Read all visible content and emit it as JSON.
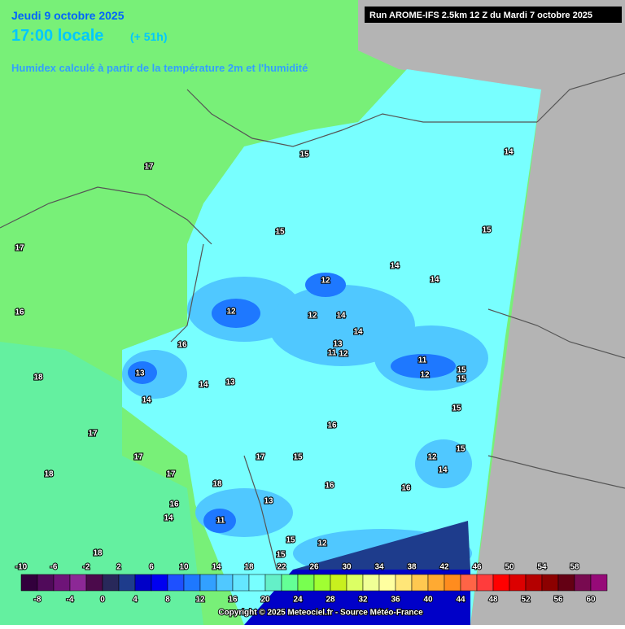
{
  "header": {
    "date": "Jeudi 9 octobre 2025",
    "time": "17:00 locale",
    "lead": "(+ 51h)",
    "parameter": "Humidex calculé à partir de la température 2m et l'humidité",
    "run": "Run AROME-IFS 2.5km 12 Z du Mardi 7 octobre 2025"
  },
  "contour_labels": [
    "17",
    "17",
    "16",
    "18",
    "16",
    "15",
    "15",
    "15",
    "14",
    "14",
    "14",
    "12",
    "12",
    "12",
    "14",
    "14",
    "13",
    "11",
    "12",
    "11",
    "12",
    "15",
    "15",
    "13",
    "14",
    "14",
    "13",
    "15",
    "16",
    "17",
    "17",
    "17",
    "18",
    "17",
    "15",
    "15",
    "12",
    "14",
    "16",
    "16",
    "18",
    "16",
    "14",
    "11",
    "13",
    "15",
    "12",
    "18",
    "15"
  ],
  "colorbar": {
    "colors": [
      "#32003c",
      "#500a5a",
      "#6e1478",
      "#8c2896",
      "#4b0a4b",
      "#28285a",
      "#1e3c8c",
      "#0000c8",
      "#0000f0",
      "#1e50ff",
      "#1e78ff",
      "#32a0ff",
      "#50c8ff",
      "#64e6ff",
      "#78ffff",
      "#64f0c8",
      "#64ff96",
      "#78ff50",
      "#a0ff32",
      "#c8f01e",
      "#dcff64",
      "#f0ff96",
      "#ffffa0",
      "#ffe678",
      "#ffc850",
      "#ffaa32",
      "#ff8c1e",
      "#ff6446",
      "#ff3c3c",
      "#ff0000",
      "#dc0000",
      "#b40000",
      "#8c0000",
      "#640014",
      "#780a50",
      "#960a78"
    ],
    "top_labels": [
      "-10",
      "-6",
      "-2",
      "2",
      "6",
      "10",
      "14",
      "18",
      "22",
      "26",
      "30",
      "34",
      "38",
      "42",
      "46",
      "50",
      "54",
      "58"
    ],
    "bottom_labels": [
      "-8",
      "-4",
      "0",
      "4",
      "8",
      "12",
      "16",
      "20",
      "24",
      "28",
      "32",
      "36",
      "40",
      "44",
      "48",
      "52",
      "56",
      "60"
    ]
  },
  "copyright": "Copyright © 2025 Meteociel.fr - Source Météo-France"
}
